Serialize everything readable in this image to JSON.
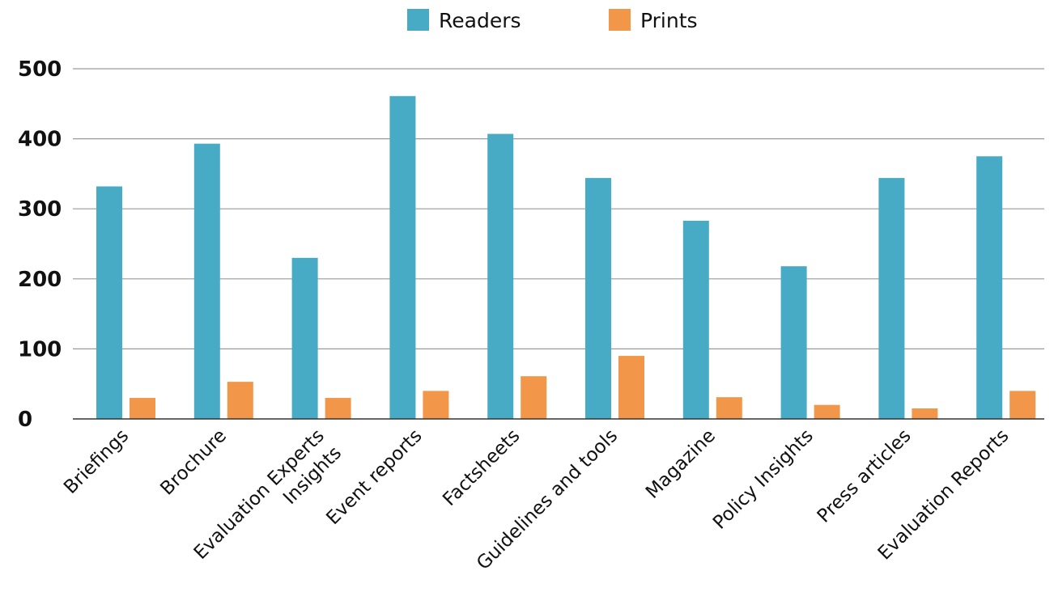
{
  "chart_data": {
    "type": "bar",
    "title": "",
    "xlabel": "",
    "ylabel": "",
    "ylim": [
      0,
      500
    ],
    "yticks": [
      0,
      100,
      200,
      300,
      400,
      500
    ],
    "grid": true,
    "legend_position": "top-center",
    "categories": [
      [
        "Briefings"
      ],
      [
        "Brochure"
      ],
      [
        "Evaluation Experts",
        "Insights"
      ],
      [
        "Event reports"
      ],
      [
        "Factsheets"
      ],
      [
        "Guidelines and tools"
      ],
      [
        "Magazine"
      ],
      [
        "Policy Insights"
      ],
      [
        "Press articles"
      ],
      [
        "Evaluation Reports"
      ]
    ],
    "series": [
      {
        "name": "Readers",
        "color": "#48abc5",
        "values": [
          332,
          393,
          230,
          461,
          407,
          344,
          283,
          218,
          344,
          375
        ]
      },
      {
        "name": "Prints",
        "color": "#f2974a",
        "values": [
          30,
          53,
          30,
          40,
          61,
          90,
          31,
          20,
          15,
          40
        ]
      }
    ]
  }
}
